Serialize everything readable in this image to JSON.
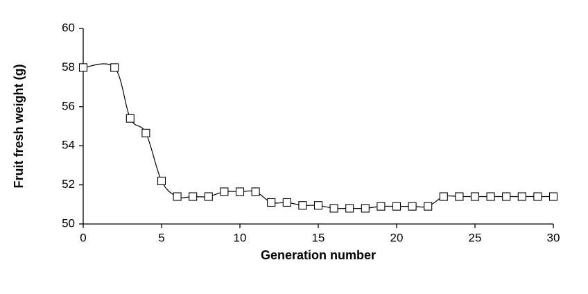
{
  "chart_data": {
    "type": "line",
    "x_label": "Generation number",
    "y_label": "Fruit fresh weight (g)",
    "series": [
      {
        "color": "#000000",
        "marker": "square",
        "x": [
          0,
          2,
          3,
          4,
          5,
          6,
          7,
          8,
          9,
          10,
          11,
          12,
          13,
          14,
          15,
          16,
          17,
          18,
          19,
          20,
          21,
          22,
          23,
          24,
          25,
          26,
          27,
          28,
          29,
          30
        ],
        "values": [
          58.0,
          58.0,
          55.4,
          54.65,
          52.2,
          51.4,
          51.4,
          51.4,
          51.65,
          51.65,
          51.65,
          51.1,
          51.1,
          50.95,
          50.95,
          50.8,
          50.8,
          50.8,
          50.9,
          50.9,
          50.9,
          50.9,
          51.4,
          51.4,
          51.4,
          51.4,
          51.4,
          51.4,
          51.4,
          51.4
        ]
      }
    ],
    "xlim": [
      0,
      30
    ],
    "xticks": [
      0,
      5,
      10,
      15,
      20,
      25,
      30
    ],
    "ylim": [
      50,
      60
    ],
    "yticks": [
      50,
      52,
      54,
      56,
      58,
      60
    ],
    "smooth": true,
    "grid": false
  }
}
